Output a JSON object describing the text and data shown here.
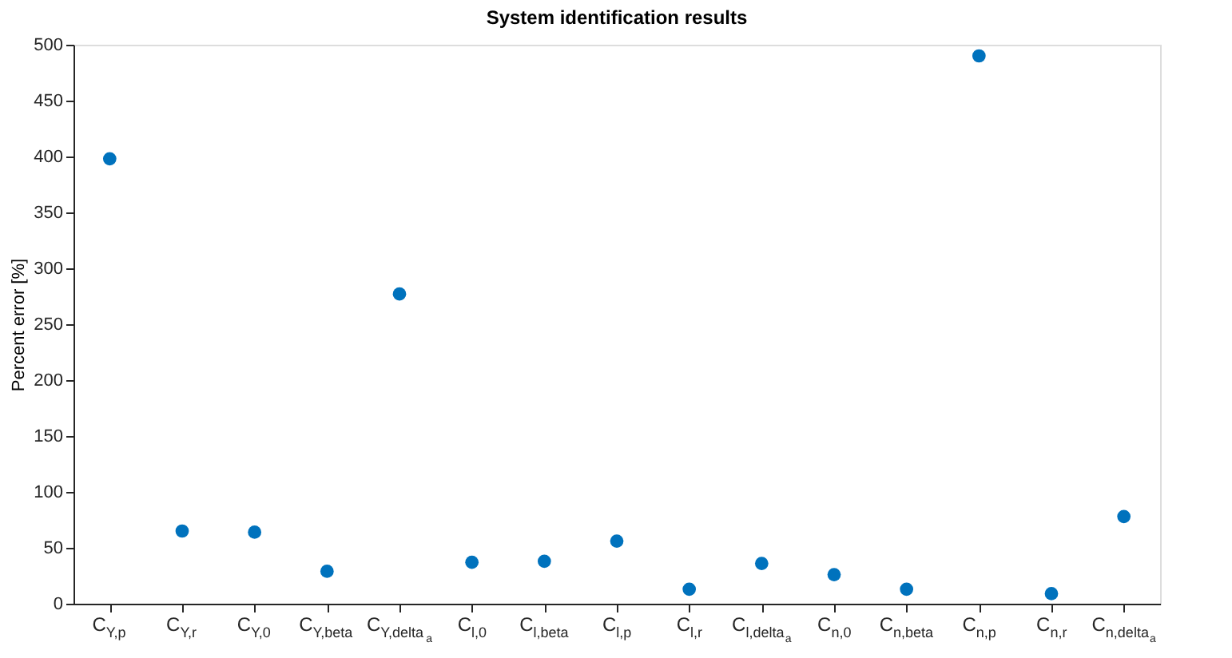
{
  "chart_data": {
    "type": "scatter",
    "title": "System identification results",
    "ylabel": "Percent error [%]",
    "categories": [
      "C$_{Y,p}$",
      "C$_{Y,r}$",
      "C$_{Y,0}$",
      "C$_{Y,beta}$",
      "C$_{Y,delta}$$_{a}$",
      "C$_{l,0}$",
      "C$_{l,beta}$",
      "C$_{l,p}$",
      "C$_{l,r}$",
      "C$_{l,delta}$$_{a}$",
      "C$_{n,0}$",
      "C$_{n,beta}$",
      "C$_{n,p}$",
      "C$_{n,r}$",
      "C$_{n,delta}$$_{a}$"
    ],
    "series": [
      {
        "color": "#0072bd",
        "values": [
          398,
          65,
          64,
          29,
          277,
          37,
          38,
          56,
          13,
          36,
          26,
          13,
          490,
          9,
          78
        ]
      }
    ],
    "ylim": [
      0,
      500
    ],
    "yticks": [
      0,
      50,
      100,
      150,
      200,
      250,
      300,
      350,
      400,
      450,
      500
    ],
    "grid": false,
    "legend": false,
    "marker": "circle"
  }
}
